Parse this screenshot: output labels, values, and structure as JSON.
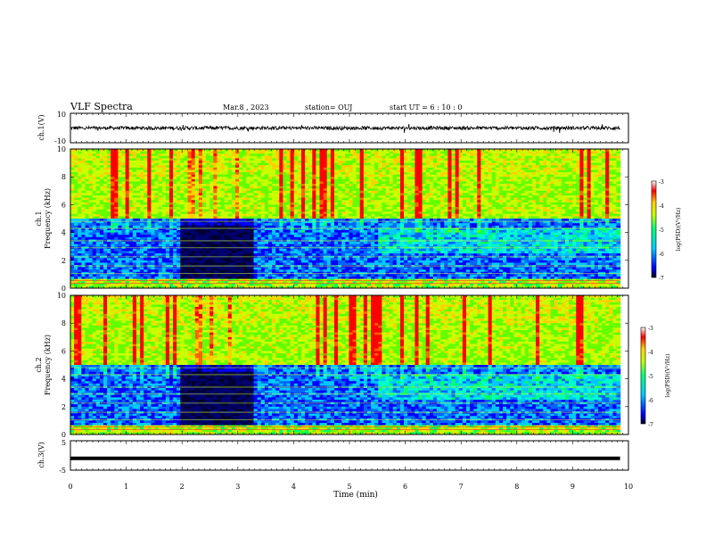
{
  "header": {
    "title": "VLF Spectra",
    "date": "Mar.8 , 2023",
    "station": "station= OUJ",
    "start": "start  UT =  6 : 10 : 0"
  },
  "chart_data": [
    {
      "type": "line",
      "title": "",
      "ylabel": "ch.1(V)",
      "ylim": [
        -10,
        10
      ],
      "y_ticks": [
        "10",
        "-10"
      ],
      "x": [
        0,
        9.85
      ],
      "values": [
        0,
        0
      ],
      "note_series": "broadband waveform amplitude around 0 V with noise about ±1.5 V"
    },
    {
      "type": "heatmap",
      "ylabel_1": "ch.1",
      "ylabel_2": "Frequency (kHz)",
      "ylim": [
        0,
        10
      ],
      "y_ticks": [
        "0",
        "2",
        "4",
        "6",
        "8",
        "10"
      ],
      "colorbar_label": "log(PSD)(V²/Hz)",
      "colorbar_ticks": [
        "-3",
        "-4",
        "-5",
        "-6",
        "-7"
      ],
      "colorbar_range": [
        -7,
        -3
      ]
    },
    {
      "type": "heatmap",
      "ylabel_1": "ch.2",
      "ylabel_2": "Frequency (kHz)",
      "ylim": [
        0,
        10
      ],
      "y_ticks": [
        "0",
        "2",
        "4",
        "6",
        "8",
        "10"
      ],
      "colorbar_label": "log(PSD)(V²/Hz)",
      "colorbar_ticks": [
        "-3",
        "-4",
        "-5",
        "-6",
        "-7"
      ],
      "colorbar_range": [
        -7,
        -3
      ]
    },
    {
      "type": "line",
      "ylabel": "ch.3(V)",
      "ylim": [
        -5,
        5
      ],
      "y_ticks": [
        "5",
        "-5"
      ],
      "x": [
        0,
        9.85
      ],
      "values": [
        -1,
        -1
      ]
    }
  ],
  "x_axis": {
    "label": "Time (min)",
    "xlim": [
      0,
      10
    ],
    "ticks": [
      "0",
      "1",
      "2",
      "3",
      "4",
      "5",
      "6",
      "7",
      "8",
      "9",
      "10"
    ]
  },
  "colors": {
    "axes": "#000000",
    "colormap": [
      "#000033",
      "#0000ff",
      "#00c8ff",
      "#00ff80",
      "#c8ff00",
      "#ffd000",
      "#ff0000",
      "#ffffff"
    ]
  }
}
